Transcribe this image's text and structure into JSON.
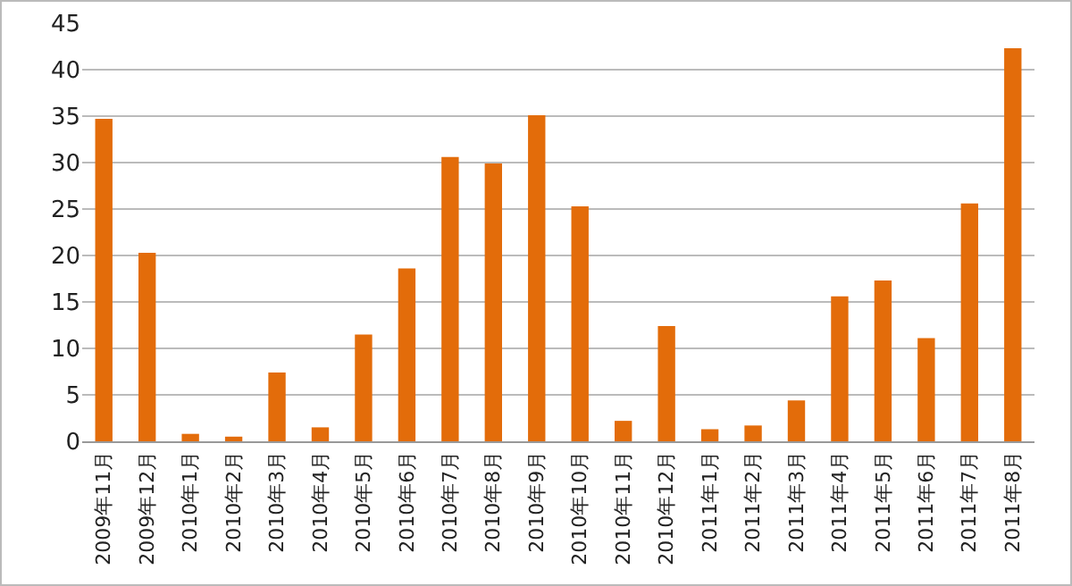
{
  "chart_data": {
    "type": "bar",
    "categories": [
      "2009年11月",
      "2009年12月",
      "2010年1月",
      "2010年2月",
      "2010年3月",
      "2010年4月",
      "2010年5月",
      "2010年6月",
      "2010年7月",
      "2010年8月",
      "2010年9月",
      "2010年10月",
      "2010年11月",
      "2010年12月",
      "2011年1月",
      "2011年2月",
      "2011年3月",
      "2011年4月",
      "2011年5月",
      "2011年6月",
      "2011年7月",
      "2011年8月"
    ],
    "values": [
      34.7,
      20.3,
      0.8,
      0.5,
      7.4,
      1.5,
      11.5,
      18.6,
      30.6,
      29.9,
      35.1,
      25.3,
      2.2,
      12.4,
      1.3,
      1.7,
      4.4,
      15.6,
      17.3,
      11.1,
      25.6,
      42.3
    ],
    "color": "#e36c0a",
    "ylim": [
      0,
      45
    ],
    "yticks": [
      0,
      5,
      10,
      15,
      20,
      25,
      30,
      35,
      40,
      45
    ],
    "grid": "y"
  }
}
